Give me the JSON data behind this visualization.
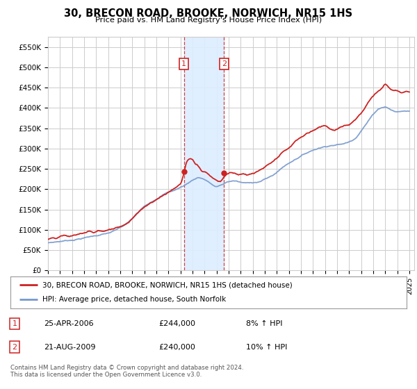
{
  "title": "30, BRECON ROAD, BROOKE, NORWICH, NR15 1HS",
  "subtitle": "Price paid vs. HM Land Registry's House Price Index (HPI)",
  "ylabel_ticks": [
    "£0",
    "£50K",
    "£100K",
    "£150K",
    "£200K",
    "£250K",
    "£300K",
    "£350K",
    "£400K",
    "£450K",
    "£500K",
    "£550K"
  ],
  "ylabel_values": [
    0,
    50000,
    100000,
    150000,
    200000,
    250000,
    300000,
    350000,
    400000,
    450000,
    500000,
    550000
  ],
  "ylim": [
    0,
    575000
  ],
  "xlim_start": 1995.0,
  "xlim_end": 2025.4,
  "hpi_color": "#7799cc",
  "price_color": "#cc2222",
  "purchase1_x": 2006.29,
  "purchase1_y": 244000,
  "purchase2_x": 2009.62,
  "purchase2_y": 240000,
  "legend_line1": "30, BRECON ROAD, BROOKE, NORWICH, NR15 1HS (detached house)",
  "legend_line2": "HPI: Average price, detached house, South Norfolk",
  "annotation1_date": "25-APR-2006",
  "annotation1_price": "£244,000",
  "annotation1_hpi": "8% ↑ HPI",
  "annotation2_date": "21-AUG-2009",
  "annotation2_price": "£240,000",
  "annotation2_hpi": "10% ↑ HPI",
  "footer": "Contains HM Land Registry data © Crown copyright and database right 2024.\nThis data is licensed under the Open Government Licence v3.0.",
  "background_color": "#ffffff",
  "grid_color": "#cccccc",
  "shaded_region_color": "#ddeeff",
  "hpi_waypoints": [
    [
      1995.0,
      68000
    ],
    [
      1995.5,
      70000
    ],
    [
      1996.0,
      72000
    ],
    [
      1996.5,
      74000
    ],
    [
      1997.0,
      76000
    ],
    [
      1997.5,
      79000
    ],
    [
      1998.0,
      82000
    ],
    [
      1998.5,
      85000
    ],
    [
      1999.0,
      88000
    ],
    [
      1999.5,
      91000
    ],
    [
      2000.0,
      94000
    ],
    [
      2000.5,
      99000
    ],
    [
      2001.0,
      106000
    ],
    [
      2001.5,
      115000
    ],
    [
      2002.0,
      127000
    ],
    [
      2002.5,
      142000
    ],
    [
      2003.0,
      157000
    ],
    [
      2003.5,
      168000
    ],
    [
      2004.0,
      178000
    ],
    [
      2004.5,
      188000
    ],
    [
      2005.0,
      195000
    ],
    [
      2005.5,
      200000
    ],
    [
      2006.0,
      207000
    ],
    [
      2006.5,
      215000
    ],
    [
      2007.0,
      225000
    ],
    [
      2007.5,
      232000
    ],
    [
      2008.0,
      228000
    ],
    [
      2008.5,
      218000
    ],
    [
      2009.0,
      210000
    ],
    [
      2009.5,
      215000
    ],
    [
      2010.0,
      222000
    ],
    [
      2010.5,
      224000
    ],
    [
      2011.0,
      220000
    ],
    [
      2011.5,
      218000
    ],
    [
      2012.0,
      220000
    ],
    [
      2012.5,
      222000
    ],
    [
      2013.0,
      228000
    ],
    [
      2013.5,
      235000
    ],
    [
      2014.0,
      245000
    ],
    [
      2014.5,
      258000
    ],
    [
      2015.0,
      268000
    ],
    [
      2015.5,
      278000
    ],
    [
      2016.0,
      287000
    ],
    [
      2016.5,
      295000
    ],
    [
      2017.0,
      302000
    ],
    [
      2017.5,
      308000
    ],
    [
      2018.0,
      312000
    ],
    [
      2018.5,
      316000
    ],
    [
      2019.0,
      318000
    ],
    [
      2019.5,
      320000
    ],
    [
      2020.0,
      325000
    ],
    [
      2020.5,
      335000
    ],
    [
      2021.0,
      355000
    ],
    [
      2021.5,
      375000
    ],
    [
      2022.0,
      395000
    ],
    [
      2022.5,
      410000
    ],
    [
      2023.0,
      415000
    ],
    [
      2023.5,
      408000
    ],
    [
      2024.0,
      403000
    ],
    [
      2024.5,
      405000
    ],
    [
      2025.0,
      405000
    ]
  ],
  "price_waypoints": [
    [
      1995.0,
      76000
    ],
    [
      1995.3,
      78000
    ],
    [
      1995.6,
      76000
    ],
    [
      1996.0,
      80000
    ],
    [
      1996.4,
      82000
    ],
    [
      1996.8,
      80000
    ],
    [
      1997.2,
      83000
    ],
    [
      1997.6,
      86000
    ],
    [
      1998.0,
      88000
    ],
    [
      1998.4,
      91000
    ],
    [
      1998.8,
      89000
    ],
    [
      1999.2,
      93000
    ],
    [
      1999.6,
      92000
    ],
    [
      2000.0,
      96000
    ],
    [
      2000.4,
      99000
    ],
    [
      2000.8,
      102000
    ],
    [
      2001.2,
      108000
    ],
    [
      2001.6,
      116000
    ],
    [
      2002.0,
      128000
    ],
    [
      2002.4,
      140000
    ],
    [
      2002.8,
      152000
    ],
    [
      2003.2,
      162000
    ],
    [
      2003.6,
      170000
    ],
    [
      2004.0,
      178000
    ],
    [
      2004.4,
      185000
    ],
    [
      2004.8,
      192000
    ],
    [
      2005.0,
      196000
    ],
    [
      2005.3,
      203000
    ],
    [
      2005.6,
      208000
    ],
    [
      2005.9,
      215000
    ],
    [
      2006.0,
      218000
    ],
    [
      2006.29,
      244000
    ],
    [
      2006.5,
      270000
    ],
    [
      2006.8,
      280000
    ],
    [
      2007.0,
      277000
    ],
    [
      2007.2,
      268000
    ],
    [
      2007.5,
      260000
    ],
    [
      2007.8,
      250000
    ],
    [
      2008.1,
      248000
    ],
    [
      2008.4,
      242000
    ],
    [
      2008.7,
      235000
    ],
    [
      2009.0,
      230000
    ],
    [
      2009.3,
      228000
    ],
    [
      2009.62,
      240000
    ],
    [
      2009.9,
      248000
    ],
    [
      2010.2,
      252000
    ],
    [
      2010.5,
      250000
    ],
    [
      2010.8,
      245000
    ],
    [
      2011.2,
      248000
    ],
    [
      2011.6,
      245000
    ],
    [
      2012.0,
      248000
    ],
    [
      2012.4,
      252000
    ],
    [
      2012.8,
      258000
    ],
    [
      2013.2,
      265000
    ],
    [
      2013.6,
      272000
    ],
    [
      2014.0,
      280000
    ],
    [
      2014.4,
      292000
    ],
    [
      2014.8,
      300000
    ],
    [
      2015.2,
      310000
    ],
    [
      2015.6,
      322000
    ],
    [
      2016.0,
      330000
    ],
    [
      2016.4,
      338000
    ],
    [
      2016.8,
      344000
    ],
    [
      2017.2,
      350000
    ],
    [
      2017.6,
      358000
    ],
    [
      2018.0,
      362000
    ],
    [
      2018.4,
      355000
    ],
    [
      2018.8,
      350000
    ],
    [
      2019.2,
      355000
    ],
    [
      2019.6,
      360000
    ],
    [
      2020.0,
      362000
    ],
    [
      2020.4,
      370000
    ],
    [
      2020.8,
      382000
    ],
    [
      2021.2,
      398000
    ],
    [
      2021.6,
      418000
    ],
    [
      2022.0,
      435000
    ],
    [
      2022.4,
      448000
    ],
    [
      2022.8,
      458000
    ],
    [
      2023.0,
      465000
    ],
    [
      2023.2,
      460000
    ],
    [
      2023.6,
      450000
    ],
    [
      2024.0,
      448000
    ],
    [
      2024.4,
      443000
    ],
    [
      2024.8,
      448000
    ],
    [
      2025.0,
      448000
    ]
  ]
}
